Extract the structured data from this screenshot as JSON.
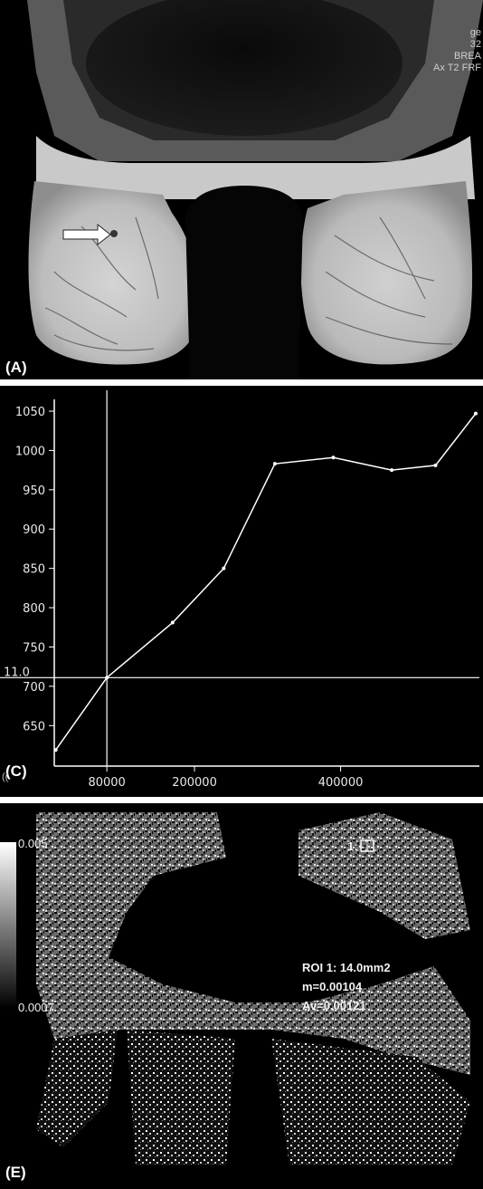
{
  "panels": {
    "a": {
      "label": "(A)",
      "overlay_lines": [
        "ge",
        "32",
        "BREA",
        "Ax T2 FRF"
      ]
    },
    "c": {
      "label": "(C)",
      "corner_fragment": "(("
    },
    "e": {
      "label": "(E)",
      "scale_max": "0.005",
      "scale_min": "0.0007",
      "roi_marker": "1:",
      "roi_lines": [
        "ROI 1: 14.0mm2",
        "m=0.00104",
        "Av=0.00121"
      ]
    }
  },
  "chart_data": {
    "type": "line",
    "title": "",
    "xlabel": "",
    "ylabel": "",
    "x_ticks": [
      "80000",
      "200000",
      "400000"
    ],
    "y_ticks": [
      "650",
      "700",
      "750",
      "800",
      "850",
      "900",
      "950",
      "1000",
      "1050"
    ],
    "crosshair": {
      "x": 80000,
      "y": 711,
      "label": "11.0"
    },
    "xlim": [
      8000,
      590000
    ],
    "ylim": [
      610,
      1065
    ],
    "series": [
      {
        "x": [
          10000,
          80000,
          170000,
          240000,
          310000,
          390000,
          470000,
          530000,
          585000
        ],
        "y": [
          619,
          711,
          781,
          850,
          983,
          991,
          975,
          981,
          1047
        ]
      }
    ],
    "grid": false,
    "color": "#ffffff"
  }
}
